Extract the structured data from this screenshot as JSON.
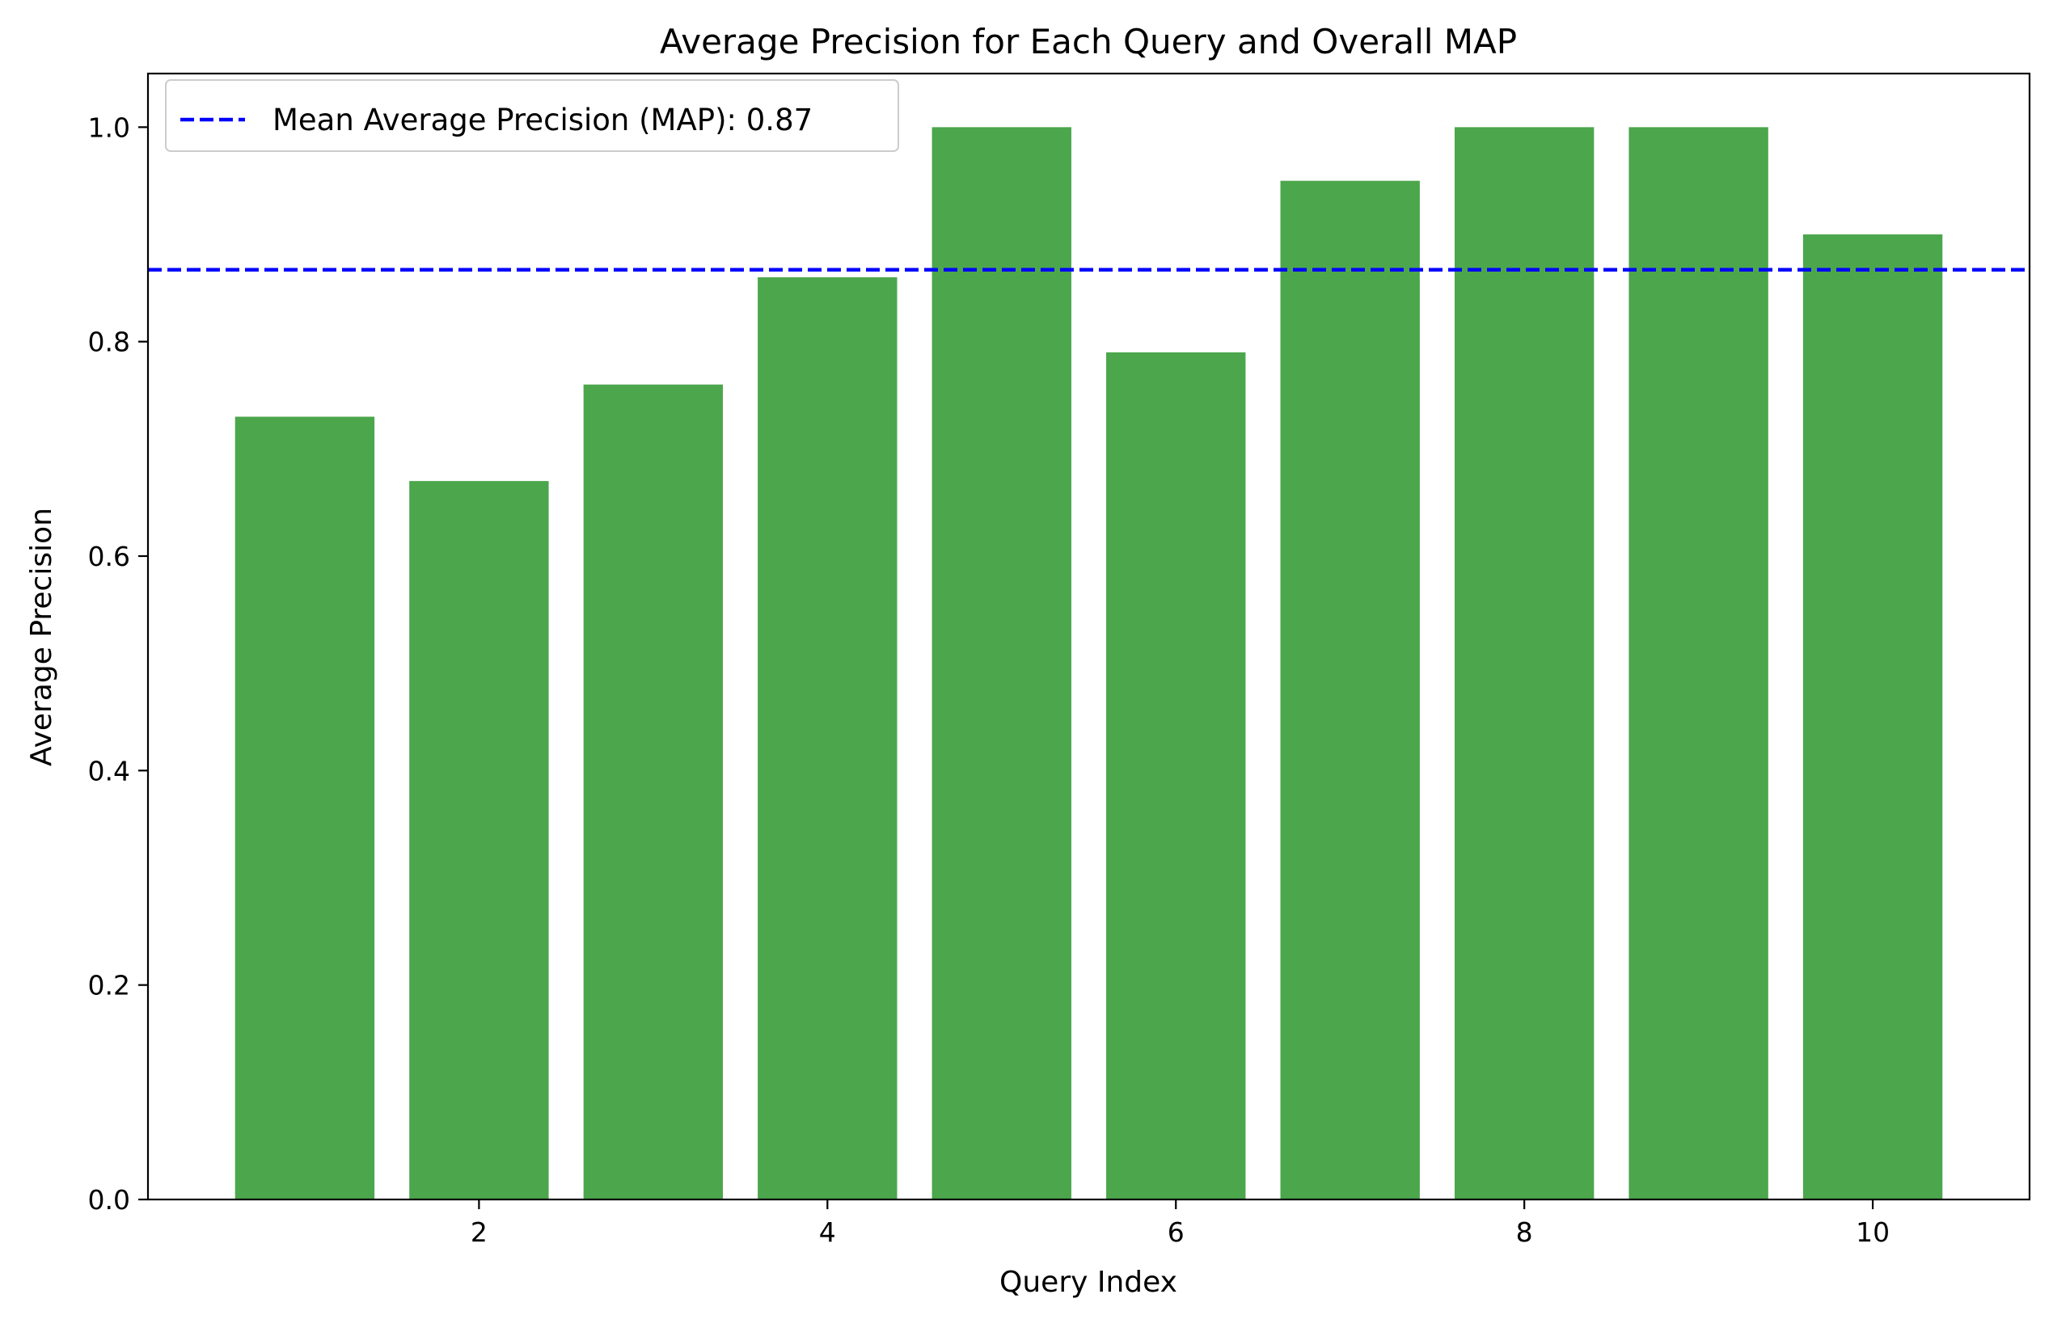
{
  "chart_data": {
    "type": "bar",
    "title": "Average Precision for Each Query and Overall MAP",
    "xlabel": "Query Index",
    "ylabel": "Average Precision",
    "x": [
      1,
      2,
      3,
      4,
      5,
      6,
      7,
      8,
      9,
      10
    ],
    "values": [
      0.73,
      0.67,
      0.76,
      0.86,
      1.0,
      0.79,
      0.95,
      1.0,
      1.0,
      0.9
    ],
    "xlim": [
      0.1,
      10.9
    ],
    "ylim": [
      0,
      1.05
    ],
    "xticks": [
      2,
      4,
      6,
      8,
      10
    ],
    "xtick_labels": [
      "2",
      "4",
      "6",
      "8",
      "10"
    ],
    "yticks": [
      0.0,
      0.2,
      0.4,
      0.6,
      0.8,
      1.0
    ],
    "ytick_labels": [
      "0.0",
      "0.2",
      "0.4",
      "0.6",
      "0.8",
      "1.0"
    ],
    "bar_color": "#4ca64c",
    "reference_line": {
      "label": "Mean Average Precision (MAP): 0.87",
      "value": 0.867,
      "color": "#0000ff",
      "style": "dashed"
    },
    "legend": {
      "placement": "top-left"
    },
    "grid": false
  }
}
